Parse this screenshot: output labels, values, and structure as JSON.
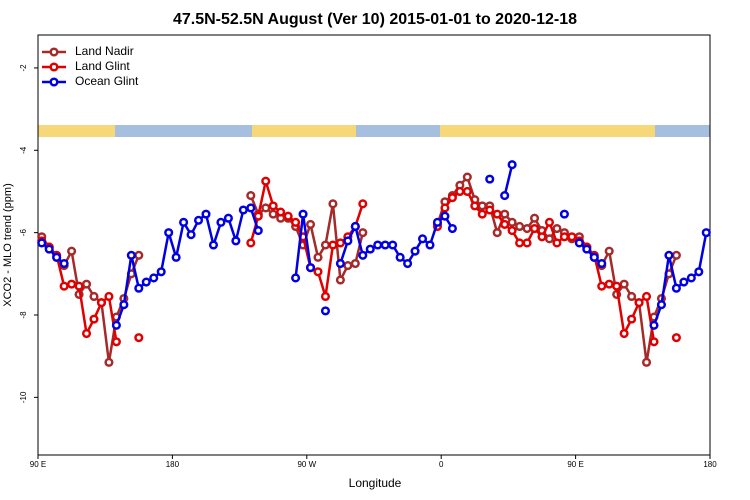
{
  "chart_data": {
    "type": "line",
    "title": "47.5N-52.5N August (Ver 10)   2015-01-01 to 2020-12-18",
    "x_label": "Longitude",
    "y_label": "XCO2 - MLO trend (ppm)",
    "xlim": [
      90,
      540
    ],
    "xticks": [
      {
        "value": 90,
        "label": "90 E"
      },
      180,
      {
        "value": 270,
        "label": "90 W"
      },
      {
        "value": 360,
        "label": "0"
      },
      {
        "value": 450,
        "label": "90 E"
      },
      {
        "value": 540,
        "label": "180"
      }
    ],
    "ylim": [
      -11.4,
      -1.2
    ],
    "yticks": [
      -2,
      -4,
      -6,
      -8,
      -10
    ],
    "legend": "top-left",
    "x": [
      92.5,
      97.5,
      102.5,
      107.5,
      112.5,
      117.5,
      122.5,
      127.5,
      132.5,
      137.5,
      142.5,
      147.5,
      152.5,
      157.5,
      162.5,
      167.5,
      172.5,
      177.5,
      182.5,
      187.5,
      192.5,
      197.5,
      202.5,
      207.5,
      212.5,
      217.5,
      222.5,
      227.5,
      232.5,
      237.5,
      242.5,
      247.5,
      252.5,
      257.5,
      262.5,
      267.5,
      272.5,
      277.5,
      282.5,
      287.5,
      292.5,
      297.5,
      302.5,
      307.5,
      312.5,
      317.5,
      322.5,
      327.5,
      332.5,
      337.5,
      342.5,
      347.5,
      352.5,
      357.5,
      362.5,
      367.5,
      372.5,
      377.5,
      382.5,
      387.5,
      392.5,
      397.5,
      402.5,
      407.5,
      412.5,
      417.5,
      422.5,
      427.5,
      432.5,
      437.5,
      442.5,
      447.5,
      452.5,
      457.5,
      462.5,
      467.5,
      472.5,
      477.5,
      482.5,
      487.5,
      492.5,
      497.5,
      502.5,
      507.5,
      512.5,
      517.5,
      522.5,
      527.5,
      532.5,
      537.5
    ],
    "series": [
      {
        "name": "Land Nadir",
        "color": "#a52a2a",
        "values": [
          -6.1,
          -6.35,
          -6.6,
          -6.8,
          -6.45,
          -7.5,
          -7.25,
          -7.55,
          -7.7,
          -9.15,
          -8.05,
          -7.6,
          -7.0,
          -6.55,
          null,
          null,
          null,
          null,
          null,
          null,
          null,
          null,
          null,
          null,
          null,
          null,
          null,
          null,
          -5.1,
          -5.55,
          -5.4,
          -5.55,
          -5.65,
          -5.65,
          -5.85,
          -6.3,
          -5.8,
          -6.6,
          -6.3,
          -5.3,
          -7.15,
          -6.8,
          -6.75,
          -6.0,
          null,
          null,
          null,
          null,
          null,
          null,
          null,
          null,
          null,
          -5.8,
          -5.25,
          -5.1,
          -4.85,
          -4.65,
          -5.2,
          -5.35,
          -5.35,
          -6.0,
          -5.55,
          -5.75,
          -5.85,
          -5.9,
          -5.65,
          -5.95,
          -6.15,
          -5.9,
          -6.0,
          -6.15,
          -6.1,
          -6.35,
          -6.6,
          -6.8,
          -6.45,
          -7.5,
          -7.25,
          -7.55,
          -7.7,
          -9.15,
          -8.05,
          -7.6,
          -7.0,
          -6.55,
          null,
          null,
          null,
          null
        ]
      },
      {
        "name": "Land Glint",
        "color": "#e00000",
        "values": [
          -6.2,
          -6.35,
          -6.55,
          -7.3,
          -7.25,
          -7.3,
          -8.45,
          -8.1,
          -7.7,
          -7.55,
          -8.65,
          null,
          null,
          -8.55,
          null,
          null,
          null,
          null,
          null,
          null,
          null,
          null,
          null,
          null,
          null,
          null,
          null,
          null,
          -6.25,
          -5.6,
          -4.75,
          -5.35,
          -5.5,
          -5.6,
          -5.75,
          -6.1,
          -6.85,
          -6.95,
          -7.55,
          -6.3,
          -6.25,
          -6.1,
          -5.85,
          -5.3,
          null,
          null,
          null,
          null,
          null,
          null,
          null,
          null,
          null,
          -5.85,
          -5.4,
          -5.15,
          -5.0,
          -5.0,
          -5.35,
          -5.55,
          -5.45,
          -5.55,
          -5.8,
          -5.95,
          -6.25,
          -6.25,
          -5.9,
          -6.1,
          -5.75,
          -6.25,
          -6.1,
          -6.1,
          -6.2,
          -6.35,
          -6.55,
          -7.3,
          -7.25,
          -7.3,
          -8.45,
          -8.1,
          -7.7,
          -7.55,
          -8.65,
          null,
          null,
          -8.55,
          null,
          null,
          null,
          null
        ]
      },
      {
        "name": "Ocean Glint",
        "color": "#0000e0",
        "values": [
          -6.25,
          -6.4,
          -6.6,
          -6.75,
          null,
          null,
          null,
          null,
          null,
          null,
          -8.25,
          -7.75,
          -6.55,
          -7.35,
          -7.2,
          -7.1,
          -6.95,
          -6.0,
          -6.6,
          -5.75,
          -6.05,
          -5.7,
          -5.55,
          -6.3,
          -5.75,
          -5.65,
          -6.2,
          -5.45,
          -5.4,
          -5.95,
          null,
          null,
          null,
          null,
          -7.1,
          -5.55,
          -6.85,
          null,
          -7.9,
          null,
          -6.75,
          -6.2,
          -5.85,
          -6.55,
          -6.4,
          -6.3,
          -6.3,
          -6.3,
          -6.6,
          -6.75,
          -6.45,
          -6.15,
          -6.3,
          -5.75,
          -5.6,
          -5.9,
          null,
          null,
          null,
          null,
          -4.7,
          null,
          -5.1,
          -4.35,
          null,
          null,
          null,
          null,
          null,
          null,
          -5.55,
          null,
          -6.25,
          -6.4,
          -6.6,
          -6.75,
          null,
          null,
          null,
          null,
          null,
          null,
          -8.25,
          -7.75,
          -6.55,
          -7.35,
          -7.2,
          -7.1,
          -6.95,
          -6.0
        ]
      }
    ]
  }
}
